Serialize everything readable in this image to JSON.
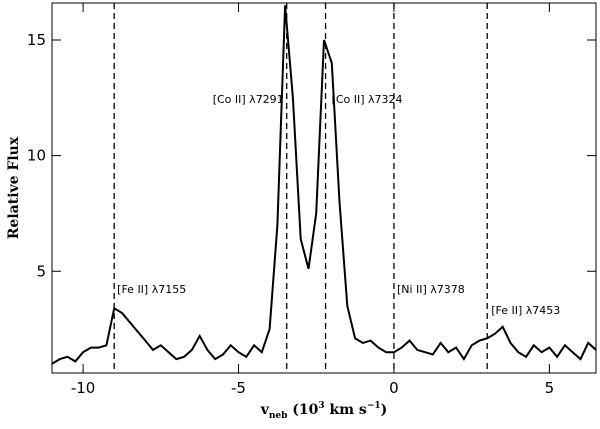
{
  "chart_data": {
    "type": "line",
    "ylabel": "Relative Flux",
    "xlabel_parts": [
      "v",
      "neb",
      " (10",
      "3",
      " km s",
      "−1",
      ")"
    ],
    "xlim": [
      -11,
      6.5
    ],
    "ylim": [
      0.6,
      16.6
    ],
    "xticks": [
      -10,
      -5,
      0,
      5
    ],
    "yticks": [
      5,
      10,
      15
    ],
    "color": "#000000",
    "x": [
      -11,
      -10.75,
      -10.5,
      -10.25,
      -10,
      -9.75,
      -9.5,
      -9.25,
      -9,
      -8.75,
      -8.5,
      -8.25,
      -8,
      -7.75,
      -7.5,
      -7.25,
      -7,
      -6.75,
      -6.5,
      -6.25,
      -6,
      -5.75,
      -5.5,
      -5.25,
      -5,
      -4.75,
      -4.5,
      -4.25,
      -4,
      -3.75,
      -3.5,
      -3.25,
      -3,
      -2.75,
      -2.5,
      -2.25,
      -2,
      -1.75,
      -1.5,
      -1.25,
      -1,
      -0.75,
      -0.5,
      -0.25,
      0,
      0.25,
      0.5,
      0.75,
      1,
      1.25,
      1.5,
      1.75,
      2,
      2.25,
      2.5,
      2.75,
      3,
      3.25,
      3.5,
      3.75,
      4,
      4.25,
      4.5,
      4.75,
      5,
      5.25,
      5.5,
      5.75,
      6,
      6.25,
      6.5
    ],
    "values": [
      1.0,
      1.2,
      1.3,
      1.1,
      1.5,
      1.7,
      1.7,
      1.8,
      3.4,
      3.2,
      2.8,
      2.4,
      2.0,
      1.6,
      1.8,
      1.5,
      1.2,
      1.3,
      1.6,
      2.2,
      1.6,
      1.2,
      1.4,
      1.8,
      1.5,
      1.3,
      1.8,
      1.5,
      2.5,
      7.0,
      16.5,
      12.5,
      6.4,
      5.1,
      7.5,
      15.0,
      14.0,
      8.0,
      3.5,
      2.1,
      1.9,
      2.0,
      1.7,
      1.5,
      1.5,
      1.7,
      2.0,
      1.6,
      1.5,
      1.4,
      1.9,
      1.5,
      1.7,
      1.2,
      1.8,
      2.0,
      2.1,
      2.3,
      2.6,
      1.9,
      1.5,
      1.3,
      1.8,
      1.5,
      1.7,
      1.3,
      1.8,
      1.5,
      1.2,
      1.9,
      1.6
    ],
    "lines": [
      {
        "x": -9.0,
        "label": "[Fe II] λ7155"
      },
      {
        "x": -3.45,
        "label": "[Co II] λ7291"
      },
      {
        "x": -2.2,
        "label": "[Co II] λ7324"
      },
      {
        "x": 0,
        "label": "[Ni II] λ7378"
      },
      {
        "x": 3.0,
        "label": "[Fe II] λ7453"
      }
    ]
  }
}
